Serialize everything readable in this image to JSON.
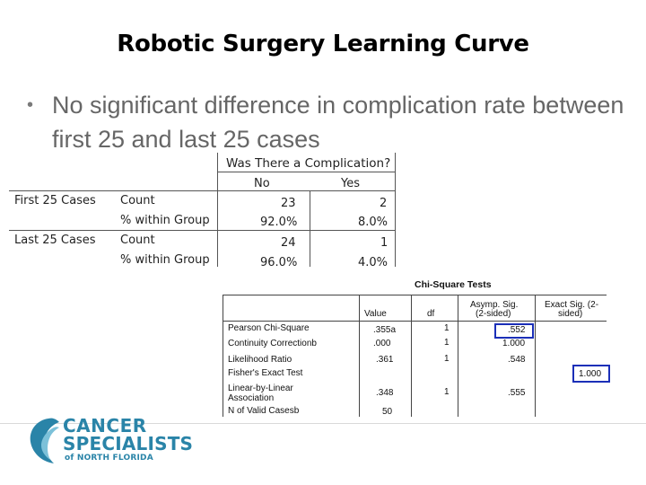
{
  "slide": {
    "title": "Robotic Surgery Learning Curve",
    "bullet": "No significant difference in complication rate between first 25 and last 25 cases"
  },
  "crosstab": {
    "header": "Was There a Complication?",
    "col_no": "No",
    "col_yes": "Yes",
    "rows": [
      {
        "group": "First 25 Cases",
        "count_label": "Count",
        "pct_label": "% within Group",
        "no_count": "23",
        "yes_count": "2",
        "no_pct": "92.0%",
        "yes_pct": "8.0%"
      },
      {
        "group": "Last 25 Cases",
        "count_label": "Count",
        "pct_label": "% within Group",
        "no_count": "24",
        "yes_count": "1",
        "no_pct": "96.0%",
        "yes_pct": "4.0%"
      }
    ]
  },
  "chisq": {
    "title": "Chi-Square Tests",
    "col_value": "Value",
    "col_df": "df",
    "col_asymp_1": "Asymp. Sig.",
    "col_asymp_2": "(2-sided)",
    "col_exact_1": "Exact Sig. (2-",
    "col_exact_2": "sided)",
    "rows": [
      {
        "label": "Pearson Chi-Square",
        "value": ".355a",
        "df": "1",
        "asymp": ".552",
        "exact": ""
      },
      {
        "label": "Continuity Correctionb",
        "value": ".000",
        "df": "1",
        "asymp": "1.000",
        "exact": ""
      },
      {
        "label": "Likelihood Ratio",
        "value": ".361",
        "df": "1",
        "asymp": ".548",
        "exact": ""
      },
      {
        "label": "Fisher's Exact Test",
        "value": "",
        "df": "",
        "asymp": "",
        "exact": "1.000"
      },
      {
        "label": "Linear-by-Linear",
        "label2": "Association",
        "value": ".348",
        "df": "1",
        "asymp": ".555",
        "exact": ""
      },
      {
        "label": "N of Valid Casesb",
        "value": "50",
        "df": "",
        "asymp": "",
        "exact": ""
      }
    ],
    "highlight_color": "#1b2fb8"
  },
  "logo": {
    "line1": "CANCER",
    "line2": "SPECIALISTS",
    "line3": "of NORTH FLORIDA",
    "color": "#2a84a8"
  }
}
